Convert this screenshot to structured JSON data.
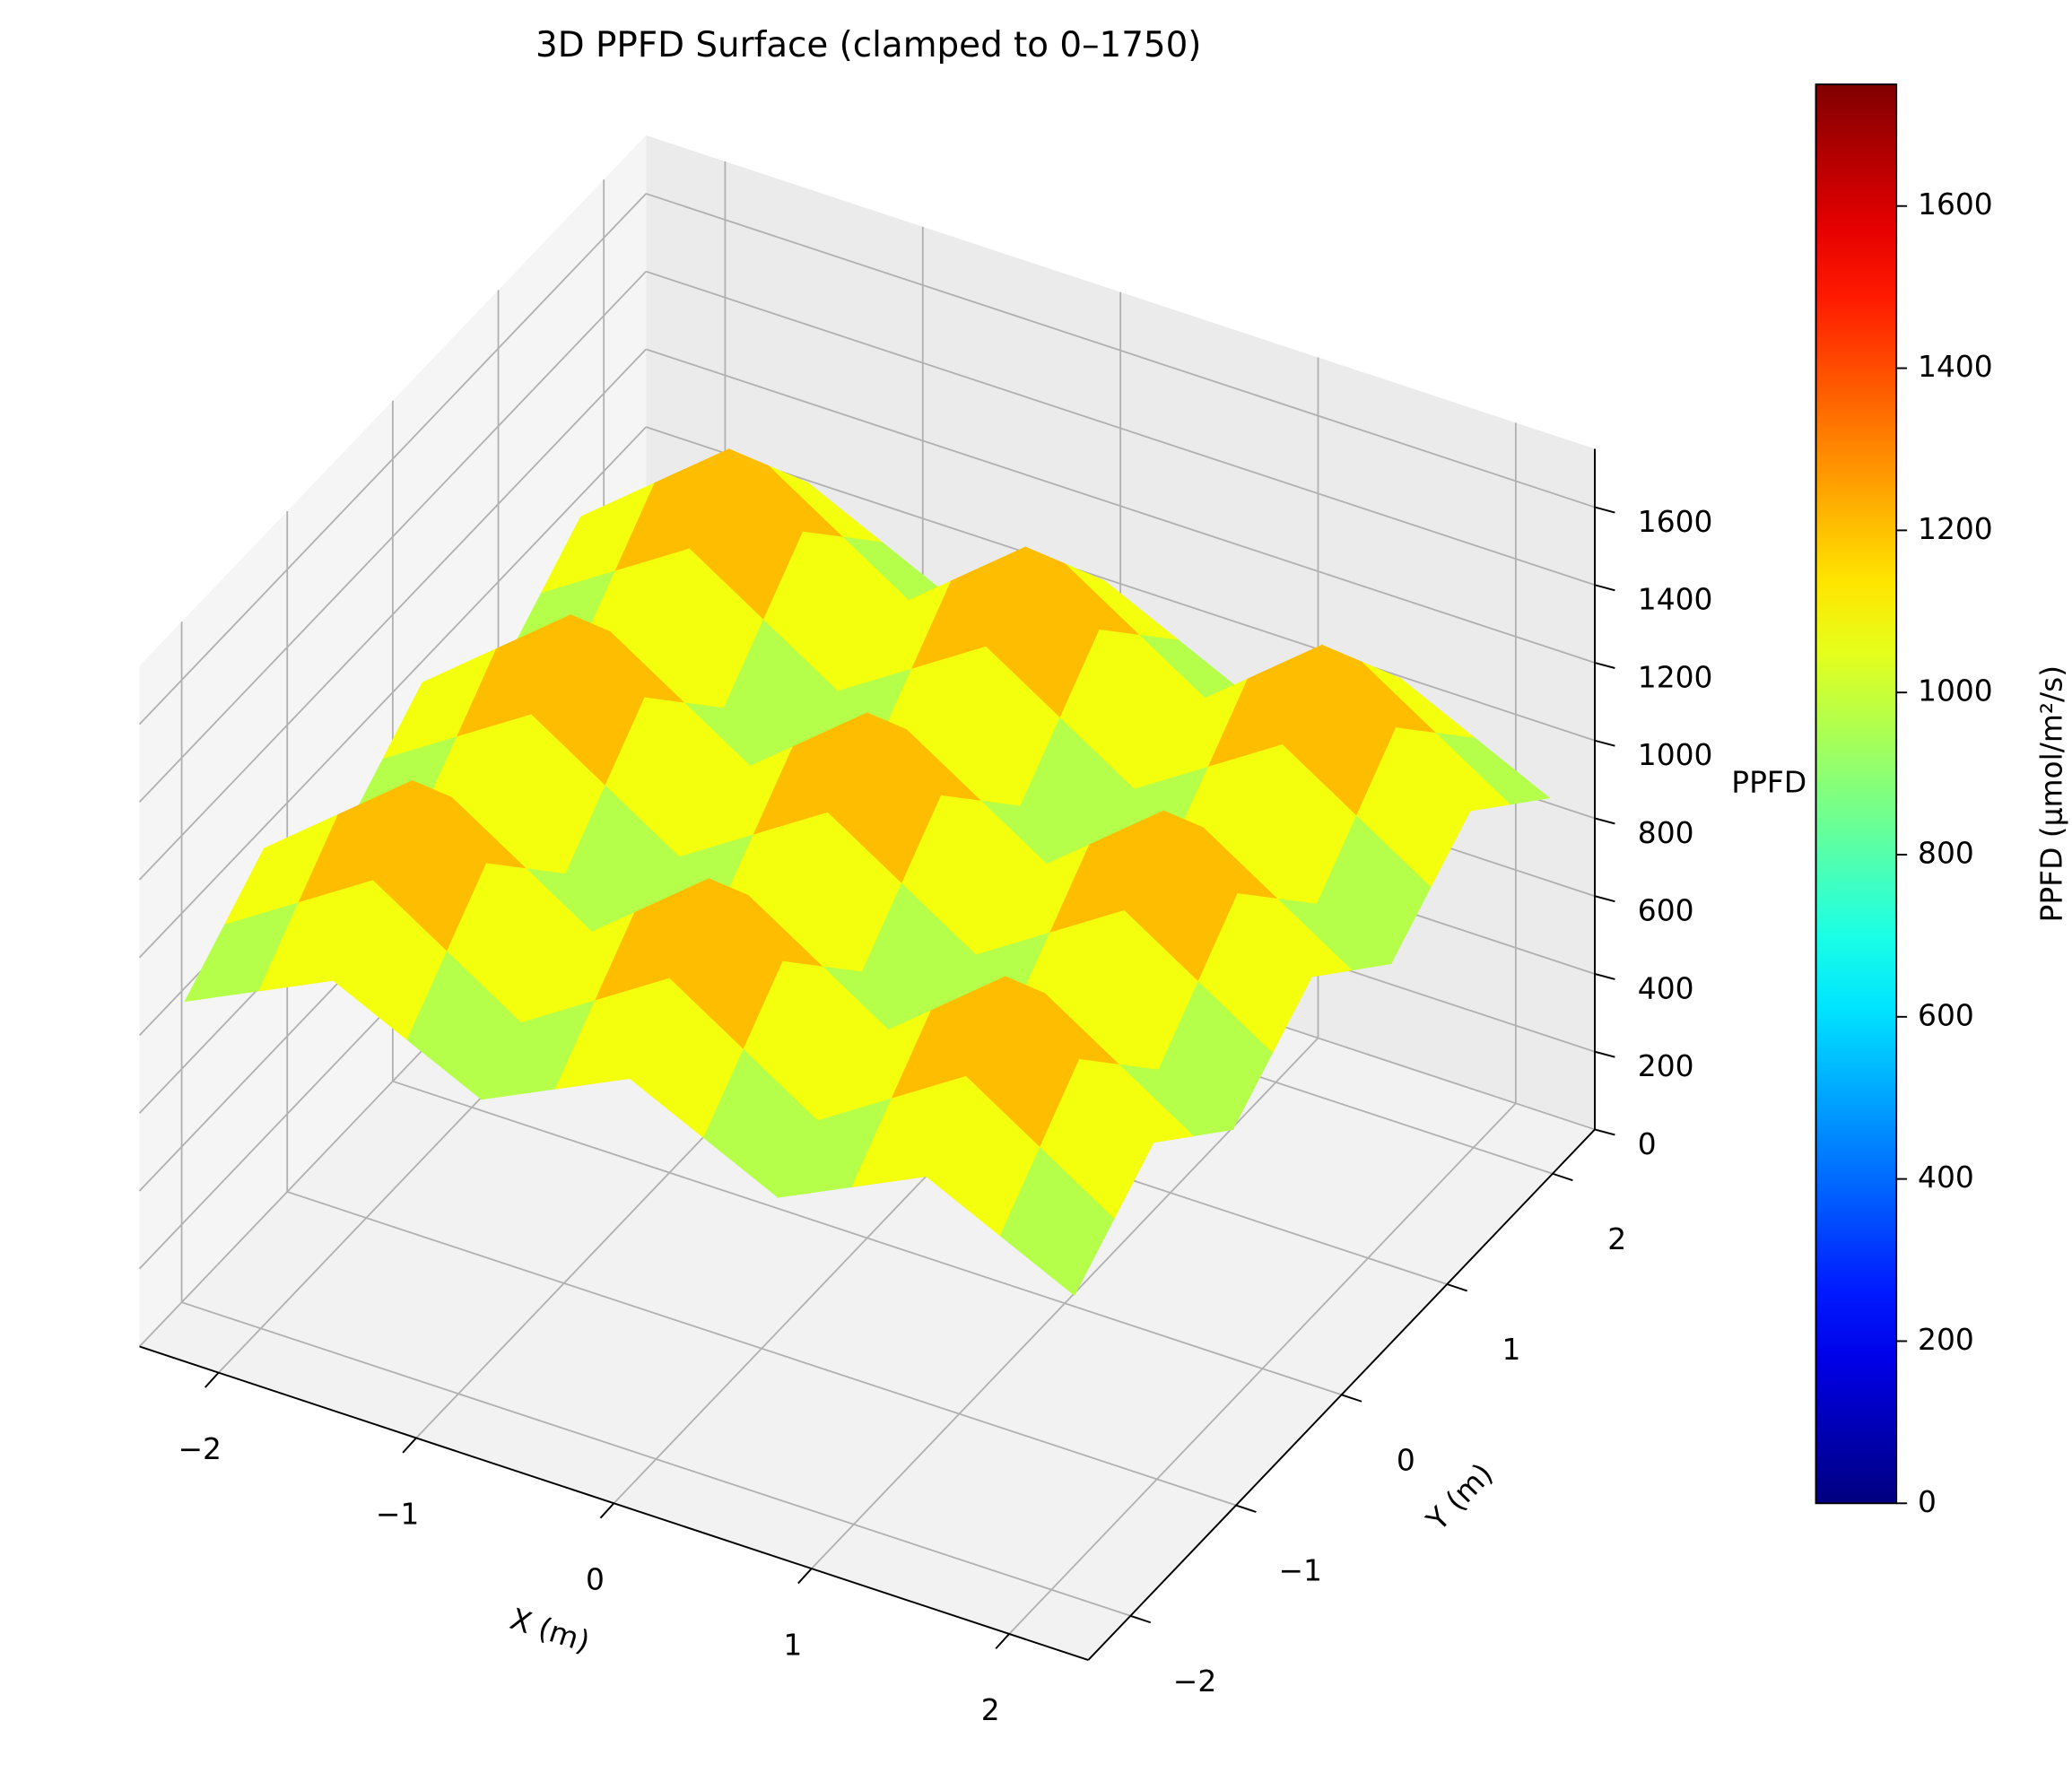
{
  "chart_data": {
    "type": "surface",
    "title": "3D PPFD Surface (clamped to 0–1750)",
    "xlabel": "X (m)",
    "ylabel": "Y (m)",
    "zlabel": "PPFD",
    "x": [
      -2.25,
      -1.875,
      -1.5,
      -1.125,
      -0.75,
      -0.375,
      0,
      0.375,
      0.75,
      1.125,
      1.5,
      1.875,
      2.25
    ],
    "y": [
      -2.25,
      -1.875,
      -1.5,
      -1.125,
      -0.75,
      -0.375,
      0,
      0.375,
      0.75,
      1.125,
      1.5,
      1.875,
      2.25
    ],
    "z": [
      [
        870,
        960,
        1050,
        960,
        870,
        960,
        1050,
        960,
        870,
        960,
        1050,
        960,
        870
      ],
      [
        960,
        1080,
        1200,
        1080,
        960,
        1080,
        1200,
        1080,
        960,
        1080,
        1200,
        1080,
        960
      ],
      [
        1050,
        1200,
        1350,
        1200,
        1050,
        1200,
        1350,
        1200,
        1050,
        1200,
        1350,
        1200,
        1050
      ],
      [
        960,
        1080,
        1200,
        1080,
        960,
        1080,
        1200,
        1080,
        960,
        1080,
        1200,
        1080,
        960
      ],
      [
        870,
        960,
        1050,
        960,
        870,
        960,
        1050,
        960,
        870,
        960,
        1050,
        960,
        870
      ],
      [
        960,
        1080,
        1200,
        1080,
        960,
        1080,
        1200,
        1080,
        960,
        1080,
        1200,
        1080,
        960
      ],
      [
        1050,
        1200,
        1350,
        1200,
        1050,
        1200,
        1350,
        1200,
        1050,
        1200,
        1350,
        1200,
        1050
      ],
      [
        960,
        1080,
        1200,
        1080,
        960,
        1080,
        1200,
        1080,
        960,
        1080,
        1200,
        1080,
        960
      ],
      [
        870,
        960,
        1050,
        960,
        870,
        960,
        1050,
        960,
        870,
        960,
        1050,
        960,
        870
      ],
      [
        960,
        1080,
        1200,
        1080,
        960,
        1080,
        1200,
        1080,
        960,
        1080,
        1200,
        1080,
        960
      ],
      [
        1050,
        1200,
        1350,
        1200,
        1050,
        1200,
        1350,
        1200,
        1050,
        1200,
        1350,
        1200,
        1050
      ],
      [
        960,
        1080,
        1200,
        1080,
        960,
        1080,
        1200,
        1080,
        960,
        1080,
        1200,
        1080,
        960
      ],
      [
        870,
        960,
        1050,
        960,
        870,
        960,
        1050,
        960,
        870,
        960,
        1050,
        960,
        870
      ]
    ],
    "xlim": [
      -2.4,
      2.4
    ],
    "ylim": [
      -2.4,
      2.4
    ],
    "zlim": [
      0,
      1750
    ],
    "xticks": [
      {
        "value": -2,
        "label": "−2"
      },
      {
        "value": -1,
        "label": "−1"
      },
      0,
      1,
      2
    ],
    "yticks": [
      {
        "value": -2,
        "label": "−2"
      },
      {
        "value": -1,
        "label": "−1"
      },
      0,
      1,
      2
    ],
    "zticks": [
      0,
      200,
      400,
      600,
      800,
      1000,
      1200,
      1400,
      1600
    ],
    "colormap": "jet",
    "grid": true,
    "colorbar": {
      "label": "PPFD (µmol/m²/s)",
      "lim": [
        0,
        1750
      ],
      "ticks": [
        0,
        200,
        400,
        600,
        800,
        1000,
        1200,
        1400,
        1600
      ]
    }
  }
}
